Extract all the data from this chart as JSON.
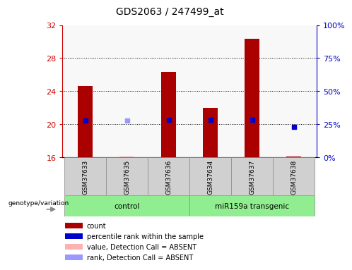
{
  "title": "GDS2063 / 247499_at",
  "samples": [
    "GSM37633",
    "GSM37635",
    "GSM37636",
    "GSM37634",
    "GSM37637",
    "GSM37638"
  ],
  "ylim_left": [
    16,
    32
  ],
  "ylim_right": [
    0,
    100
  ],
  "yticks_left": [
    16,
    20,
    24,
    28,
    32
  ],
  "yticks_right": [
    0,
    25,
    50,
    75,
    100
  ],
  "ytick_labels_right": [
    "0%",
    "25%",
    "50%",
    "75%",
    "100%"
  ],
  "count_values": [
    24.6,
    16.1,
    26.3,
    22.0,
    30.3,
    16.1
  ],
  "rank_values": [
    20.4,
    20.4,
    20.5,
    20.5,
    20.5,
    19.7
  ],
  "absent_detection": [
    false,
    true,
    false,
    false,
    false,
    false
  ],
  "base_value": 16,
  "bar_width": 0.35,
  "count_color": "#AA0000",
  "count_color_absent": "#FFB0B0",
  "rank_color": "#0000CC",
  "rank_color_absent": "#9999FF",
  "axis_label_color_left": "#CC0000",
  "axis_label_color_right": "#0000CC",
  "legend_items": [
    {
      "label": "count",
      "color": "#AA0000"
    },
    {
      "label": "percentile rank within the sample",
      "color": "#0000CC"
    },
    {
      "label": "value, Detection Call = ABSENT",
      "color": "#FFB0B0"
    },
    {
      "label": "rank, Detection Call = ABSENT",
      "color": "#9999FF"
    }
  ],
  "group_defs": [
    {
      "label": "control",
      "start": 0,
      "end": 2,
      "color": "#90EE90"
    },
    {
      "label": "miR159a transgenic",
      "start": 3,
      "end": 5,
      "color": "#90EE90"
    }
  ],
  "background_color": "#ffffff"
}
